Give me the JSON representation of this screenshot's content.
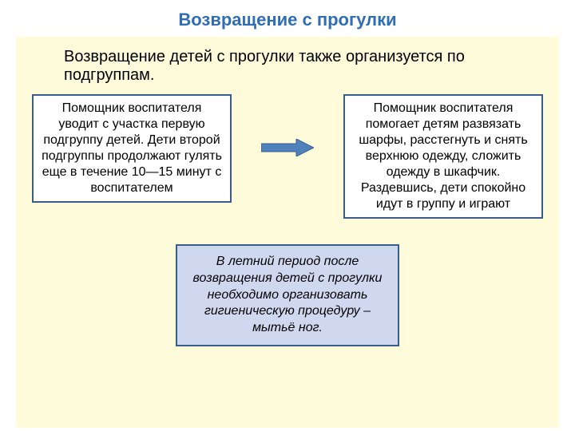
{
  "title": {
    "text": "Возвращение с прогулки",
    "color": "#2f6db5",
    "fontsize": 22
  },
  "panel": {
    "background": "#fdfbd9"
  },
  "subtitle": {
    "text": "Возвращение детей с прогулки также организуется по подгруппам.",
    "color": "#000000",
    "fontsize": 20
  },
  "boxLeft": {
    "text": "Помощник воспитателя уводит с участка первую подгруппу детей. Дети второй подгруппы продолжают гулять еще в течение 10—15 минут с воспитателем",
    "borderColor": "#385d8a",
    "borderWidth": 2,
    "background": "#ffffff",
    "fontsize": 16,
    "color": "#000000"
  },
  "boxRight": {
    "text": "Помощник воспитателя помогает детям развязать шарфы, расстегнуть и снять верхнюю одежду, сложить одежду в шкафчик. Раздевшись, дети спокойно идут в группу и играют",
    "borderColor": "#385d8a",
    "borderWidth": 2,
    "background": "#ffffff",
    "fontsize": 16,
    "color": "#000000"
  },
  "arrow": {
    "fill": "#4f81bd",
    "stroke": "#385d8a",
    "width": 66,
    "height": 22
  },
  "bottomBox": {
    "text": "В летний период после возвращения детей с прогулки необходимо организовать гигиеническую процедуру – мытьё ног.",
    "background": "#d0d8f0",
    "borderColor": "#385d8a",
    "borderWidth": 2,
    "fontsize": 16,
    "color": "#000000"
  }
}
